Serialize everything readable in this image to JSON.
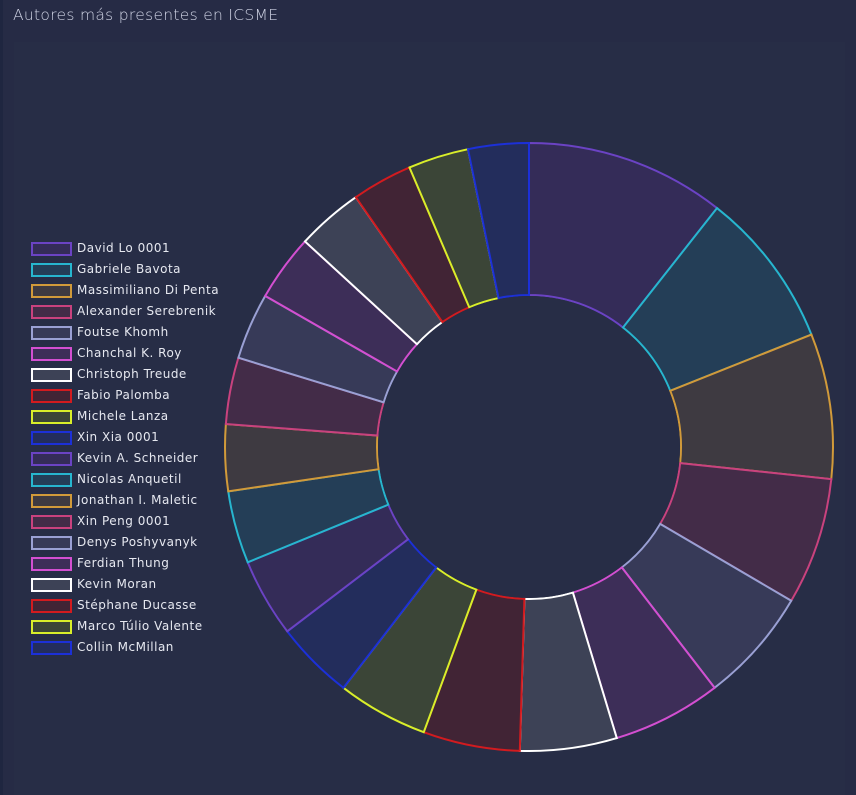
{
  "page": {
    "title": "Autores más presentes en ICSME"
  },
  "chart_data": {
    "type": "pie",
    "variant": "doughnut",
    "title": "",
    "legend_position": "left",
    "categories": [
      "David Lo 0001",
      "Gabriele Bavota",
      "Massimiliano Di Penta",
      "Alexander Serebrenik",
      "Foutse Khomh",
      "Chanchal K. Roy",
      "Christoph Treude",
      "Fabio Palomba",
      "Michele Lanza",
      "Xin Xia 0001",
      "Kevin A. Schneider",
      "Nicolas Anquetil",
      "Jonathan I. Maletic",
      "Xin Peng 0001",
      "Denys Poshyvanyk",
      "Ferdian Thung",
      "Kevin Moran",
      "Stéphane Ducasse",
      "Marco Túlio Valente",
      "Collin McMillan"
    ],
    "values": [
      33,
      26,
      24,
      21,
      19,
      18,
      16,
      16,
      15,
      13,
      13,
      12,
      11,
      11,
      11,
      11,
      11,
      10,
      10,
      10
    ],
    "colors": [
      "#6b43c4",
      "#27b6cf",
      "#d19a3a",
      "#c9427e",
      "#9aa0d4",
      "#d34fd1",
      "#ffffff",
      "#d21b1f",
      "#d9ee2a",
      "#1c30d8",
      "#6b43c4",
      "#27b6cf",
      "#d19a3a",
      "#c9427e",
      "#9aa0d4",
      "#d34fd1",
      "#ffffff",
      "#d21b1f",
      "#d9ee2a",
      "#1c30d8"
    ],
    "fills": [
      "#342c58",
      "#243e57",
      "#3e3a41",
      "#432c48",
      "#373a58",
      "#3d2e58",
      "#3d4256",
      "#412435",
      "#3b4537",
      "#232d5c",
      "#342c58",
      "#243e57",
      "#3e3a41",
      "#432c48",
      "#373a58",
      "#3d2e58",
      "#3d4256",
      "#412435",
      "#3b4537",
      "#232d5c"
    ]
  }
}
